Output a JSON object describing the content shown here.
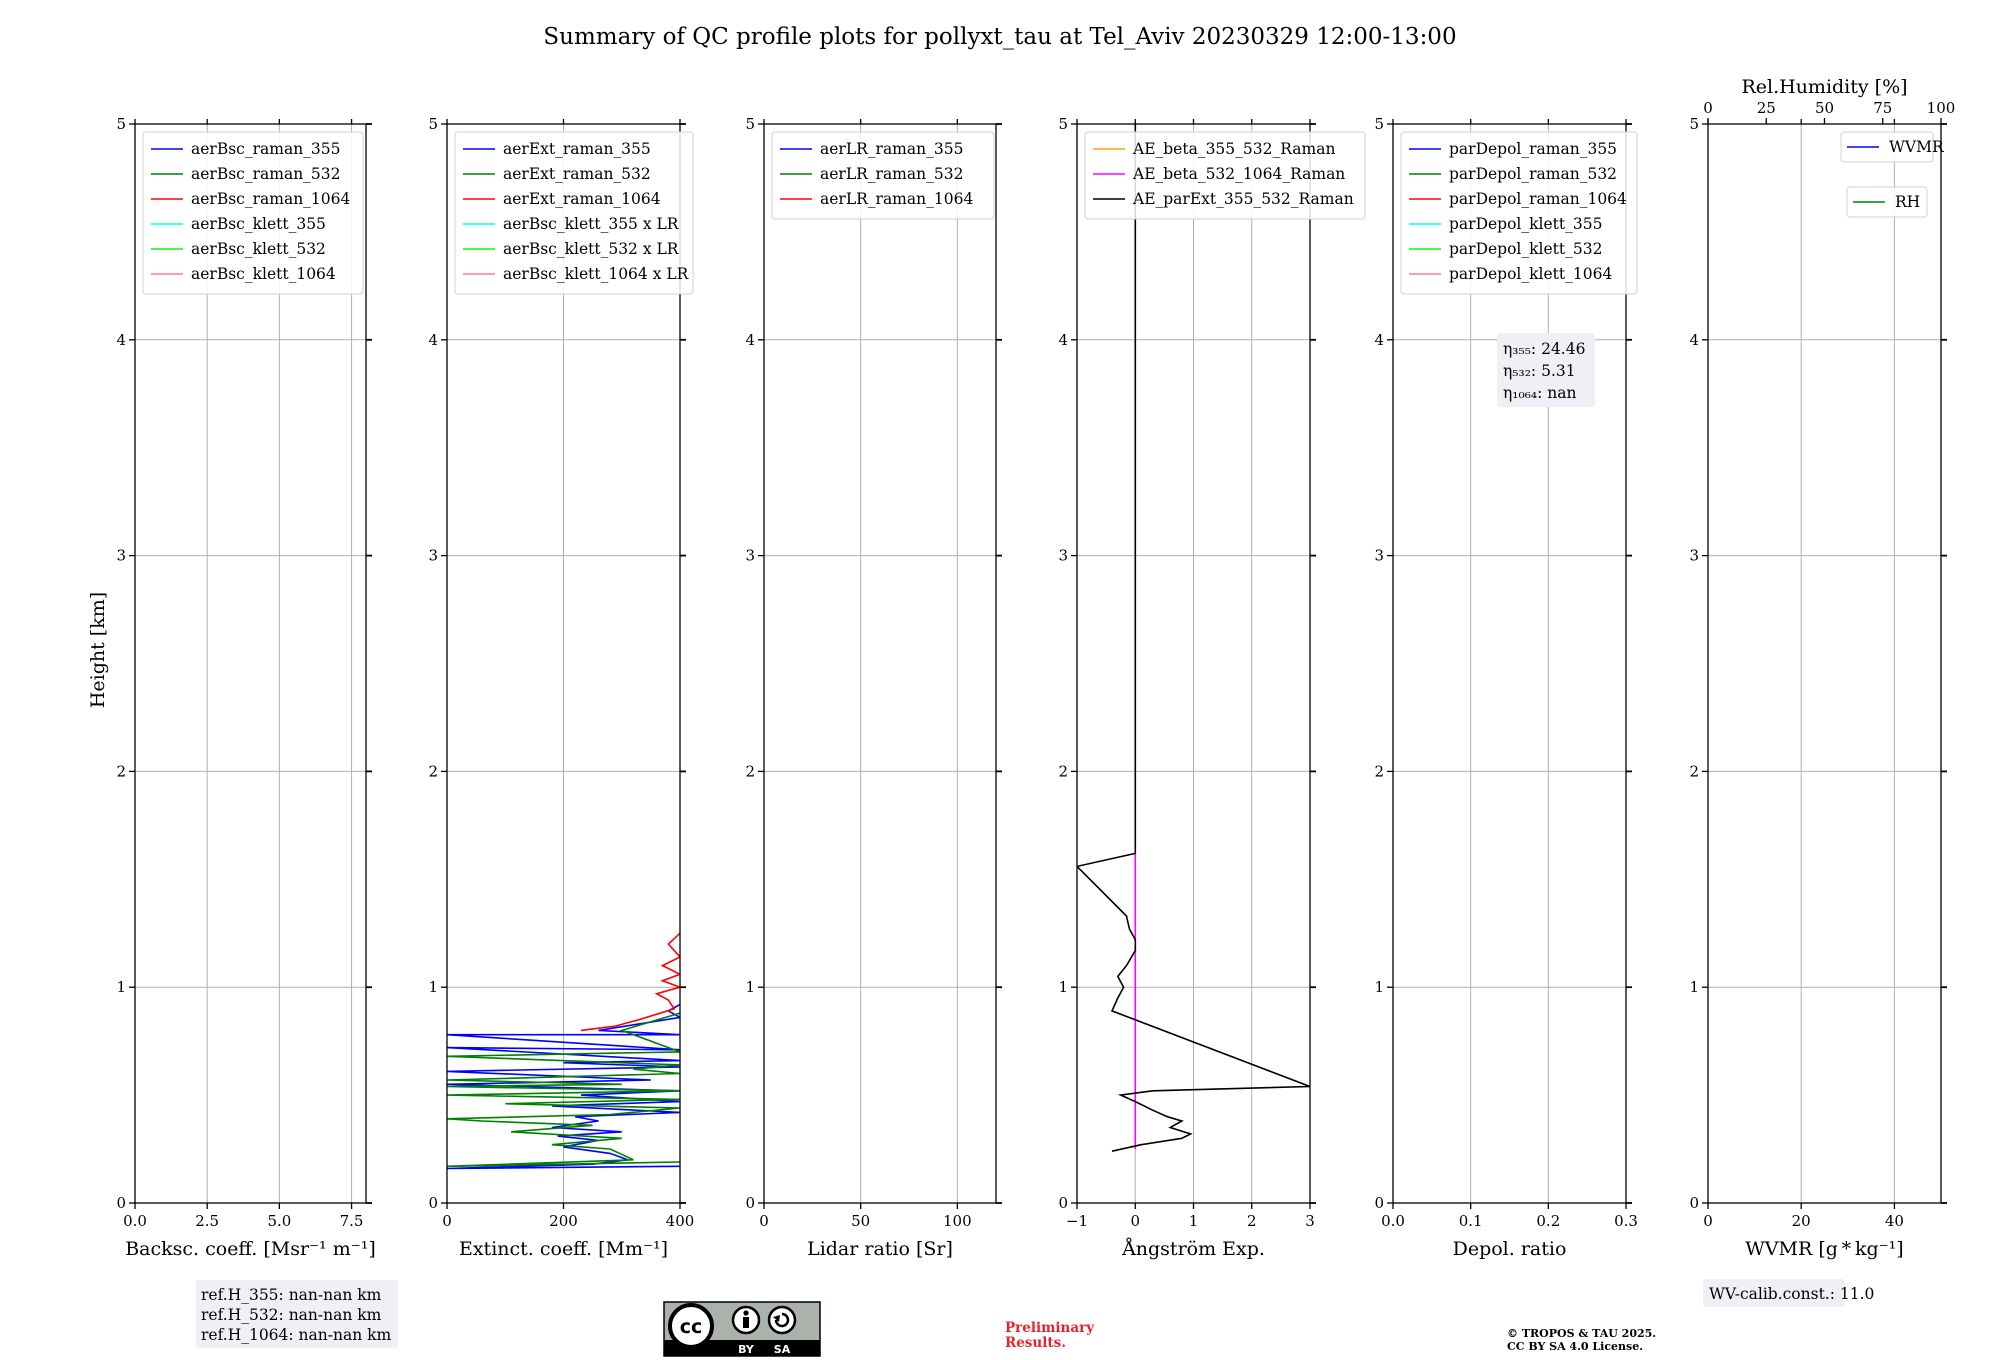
{
  "figure": {
    "title": "Summary of QC profile plots for pollyxt_tau at Tel_Aviv 20230329 12:00-13:00",
    "ylabel": "Height [km]",
    "ref_heights": [
      "ref.H_355: nan-nan km",
      "ref.H_532: nan-nan km",
      "ref.H_1064: nan-nan km"
    ],
    "eta_lines": [
      "η₃₅₅: 24.46",
      "η₅₃₂: 5.31",
      "η₁₀₆₄: nan"
    ],
    "wv_calib": "WV-calib.const.: 11.0",
    "license_badge": {
      "cc": "cc",
      "by": "BY",
      "sa": "SA"
    },
    "preliminary": [
      "Preliminary",
      "Results."
    ],
    "copyright": [
      "© TROPOS & TAU 2025.",
      "CC BY SA 4.0 License."
    ],
    "colors": {
      "blue": "#0000ff",
      "green": "#008000",
      "red": "#ff0000",
      "cyan": "#00ffff",
      "lime": "#00ff00",
      "salmon": "#ff8080",
      "orange": "#ffa500",
      "magenta": "#ff00ff",
      "black": "#000000"
    }
  },
  "chart_data": [
    {
      "type": "line",
      "xlabel": "Backsc. coeff. [Msr⁻¹ m⁻¹]",
      "xlim": [
        0,
        8
      ],
      "xticks": [
        "0.0",
        "2.5",
        "5.0",
        "7.5"
      ],
      "xtick_values": [
        0,
        2.5,
        5,
        7.5
      ],
      "ylim": [
        0,
        5
      ],
      "yticks": [
        "0",
        "1",
        "2",
        "3",
        "4",
        "5"
      ],
      "grid": true,
      "legend": "top-left",
      "series": [
        {
          "name": "aerBsc_raman_355",
          "color": "#0000ff",
          "points": []
        },
        {
          "name": "aerBsc_raman_532",
          "color": "#008000",
          "points": []
        },
        {
          "name": "aerBsc_raman_1064",
          "color": "#ff0000",
          "points": []
        },
        {
          "name": "aerBsc_klett_355",
          "color": "#00ffff",
          "points": []
        },
        {
          "name": "aerBsc_klett_532",
          "color": "#00ff00",
          "points": []
        },
        {
          "name": "aerBsc_klett_1064",
          "color": "#ff8080",
          "points": []
        }
      ]
    },
    {
      "type": "line",
      "xlabel": "Extinct. coeff. [Mm⁻¹]",
      "xlim": [
        0,
        400
      ],
      "xticks": [
        "0",
        "200",
        "400"
      ],
      "xtick_values": [
        0,
        200,
        400
      ],
      "ylim": [
        0,
        5
      ],
      "yticks": [
        "0",
        "1",
        "2",
        "3",
        "4",
        "5"
      ],
      "grid": true,
      "legend": "top-left",
      "series": [
        {
          "name": "aerExt_raman_355",
          "color": "#0000ff",
          "points": [
            [
              400,
              0.17
            ],
            [
              0,
              0.16
            ],
            [
              250,
              0.18
            ],
            [
              310,
              0.2
            ],
            [
              280,
              0.23
            ],
            [
              200,
              0.26
            ],
            [
              260,
              0.29
            ],
            [
              190,
              0.31
            ],
            [
              300,
              0.33
            ],
            [
              180,
              0.35
            ],
            [
              260,
              0.38
            ],
            [
              220,
              0.4
            ],
            [
              400,
              0.42
            ],
            [
              180,
              0.45
            ],
            [
              400,
              0.47
            ],
            [
              230,
              0.5
            ],
            [
              400,
              0.52
            ],
            [
              0,
              0.55
            ],
            [
              350,
              0.57
            ],
            [
              0,
              0.61
            ],
            [
              400,
              0.63
            ],
            [
              200,
              0.65
            ],
            [
              400,
              0.66
            ],
            [
              0,
              0.72
            ],
            [
              400,
              0.71
            ],
            [
              0,
              0.78
            ],
            [
              400,
              0.78
            ],
            [
              260,
              0.8
            ],
            [
              330,
              0.83
            ],
            [
              400,
              0.86
            ],
            [
              380,
              0.89
            ],
            [
              400,
              0.92
            ]
          ]
        },
        {
          "name": "aerExt_raman_532",
          "color": "#008000",
          "points": [
            [
              400,
              0.19
            ],
            [
              0,
              0.17
            ],
            [
              320,
              0.2
            ],
            [
              280,
              0.25
            ],
            [
              180,
              0.27
            ],
            [
              300,
              0.3
            ],
            [
              110,
              0.33
            ],
            [
              250,
              0.36
            ],
            [
              60,
              0.38
            ],
            [
              0,
              0.39
            ],
            [
              280,
              0.41
            ],
            [
              400,
              0.44
            ],
            [
              100,
              0.46
            ],
            [
              400,
              0.48
            ],
            [
              0,
              0.5
            ],
            [
              400,
              0.52
            ],
            [
              0,
              0.54
            ],
            [
              300,
              0.55
            ],
            [
              0,
              0.57
            ],
            [
              400,
              0.6
            ],
            [
              320,
              0.62
            ],
            [
              400,
              0.64
            ],
            [
              0,
              0.68
            ],
            [
              400,
              0.7
            ],
            [
              300,
              0.8
            ],
            [
              400,
              0.88
            ]
          ]
        },
        {
          "name": "aerExt_raman_1064",
          "color": "#ff0000",
          "points": [
            [
              230,
              0.8
            ],
            [
              290,
              0.82
            ],
            [
              330,
              0.85
            ],
            [
              390,
              0.9
            ],
            [
              380,
              0.94
            ],
            [
              360,
              0.97
            ],
            [
              400,
              1.0
            ],
            [
              370,
              1.03
            ],
            [
              400,
              1.06
            ],
            [
              370,
              1.1
            ],
            [
              400,
              1.14
            ],
            [
              380,
              1.2
            ],
            [
              400,
              1.25
            ]
          ]
        },
        {
          "name": "aerBsc_klett_355 x LR",
          "color": "#00ffff",
          "points": []
        },
        {
          "name": "aerBsc_klett_532 x LR",
          "color": "#00ff00",
          "points": []
        },
        {
          "name": "aerBsc_klett_1064 x LR",
          "color": "#ff8080",
          "points": []
        }
      ]
    },
    {
      "type": "line",
      "xlabel": "Lidar ratio [Sr]",
      "xlim": [
        0,
        120
      ],
      "xticks": [
        "0",
        "50",
        "100"
      ],
      "xtick_values": [
        0,
        50,
        100
      ],
      "ylim": [
        0,
        5
      ],
      "yticks": [
        "0",
        "1",
        "2",
        "3",
        "4",
        "5"
      ],
      "grid": true,
      "legend": "top-left",
      "series": [
        {
          "name": "aerLR_raman_355",
          "color": "#0000ff",
          "points": []
        },
        {
          "name": "aerLR_raman_532",
          "color": "#008000",
          "points": []
        },
        {
          "name": "aerLR_raman_1064",
          "color": "#ff0000",
          "points": []
        }
      ]
    },
    {
      "type": "line",
      "xlabel": "Ångström Exp.",
      "xlim": [
        -1,
        3
      ],
      "xticks": [
        "−1",
        "0",
        "1",
        "2",
        "3"
      ],
      "xtick_values": [
        -1,
        0,
        1,
        2,
        3
      ],
      "ylim": [
        0,
        5
      ],
      "yticks": [
        "0",
        "1",
        "2",
        "3",
        "4",
        "5"
      ],
      "grid": true,
      "legend": "top-left",
      "series": [
        {
          "name": "AE_beta_355_532_Raman",
          "color": "#ffa500",
          "points": []
        },
        {
          "name": "AE_beta_532_1064_Raman",
          "color": "#ff00ff",
          "points": [
            [
              0,
              0.25
            ],
            [
              0,
              1.62
            ]
          ]
        },
        {
          "name": "AE_parExt_355_532_Raman",
          "color": "#000000",
          "points": [
            [
              -0.4,
              0.24
            ],
            [
              0.1,
              0.27
            ],
            [
              0.8,
              0.3
            ],
            [
              0.95,
              0.32
            ],
            [
              0.6,
              0.35
            ],
            [
              0.8,
              0.38
            ],
            [
              0.55,
              0.4
            ],
            [
              0.3,
              0.43
            ],
            [
              0,
              0.47
            ],
            [
              -0.25,
              0.5
            ],
            [
              0.3,
              0.52
            ],
            [
              3,
              0.54
            ],
            [
              -0.4,
              0.89
            ],
            [
              -0.3,
              0.95
            ],
            [
              -0.2,
              1.0
            ],
            [
              -0.3,
              1.05
            ],
            [
              -0.15,
              1.1
            ],
            [
              0,
              1.17
            ],
            [
              0,
              1.22
            ],
            [
              -0.1,
              1.27
            ],
            [
              -0.15,
              1.33
            ],
            [
              -1,
              1.56
            ],
            [
              0,
              1.62
            ],
            [
              0,
              5
            ]
          ]
        }
      ]
    },
    {
      "type": "line",
      "xlabel": "Depol. ratio",
      "xlim": [
        0,
        0.3
      ],
      "xticks": [
        "0.0",
        "0.1",
        "0.2",
        "0.3"
      ],
      "xtick_values": [
        0,
        0.1,
        0.2,
        0.3
      ],
      "ylim": [
        0,
        5
      ],
      "yticks": [
        "0",
        "1",
        "2",
        "3",
        "4",
        "5"
      ],
      "grid": true,
      "legend": "top-left",
      "series": [
        {
          "name": "parDepol_raman_355",
          "color": "#0000ff",
          "points": []
        },
        {
          "name": "parDepol_raman_532",
          "color": "#008000",
          "points": []
        },
        {
          "name": "parDepol_raman_1064",
          "color": "#ff0000",
          "points": []
        },
        {
          "name": "parDepol_klett_355",
          "color": "#00ffff",
          "points": []
        },
        {
          "name": "parDepol_klett_532",
          "color": "#00ff00",
          "points": []
        },
        {
          "name": "parDepol_klett_1064",
          "color": "#ff8080",
          "points": []
        }
      ]
    },
    {
      "type": "line",
      "xlabel": "WVMR [g * kg⁻¹]",
      "xlim": [
        0,
        50
      ],
      "xticks": [
        "0",
        "20",
        "40"
      ],
      "xtick_values": [
        0,
        20,
        40
      ],
      "top_xlabel": "Rel.Humidity [%]",
      "top_xlim": [
        0,
        100
      ],
      "top_xticks": [
        "0",
        "25",
        "50",
        "75",
        "100"
      ],
      "top_xtick_values": [
        0,
        25,
        50,
        75,
        100
      ],
      "ylim": [
        0,
        5
      ],
      "yticks": [
        "0",
        "1",
        "2",
        "3",
        "4",
        "5"
      ],
      "grid": true,
      "legend": "top-right",
      "series": [
        {
          "name": "WVMR",
          "color": "#0000ff",
          "points": []
        },
        {
          "name": "RH",
          "color": "#008000",
          "points": []
        }
      ]
    }
  ]
}
